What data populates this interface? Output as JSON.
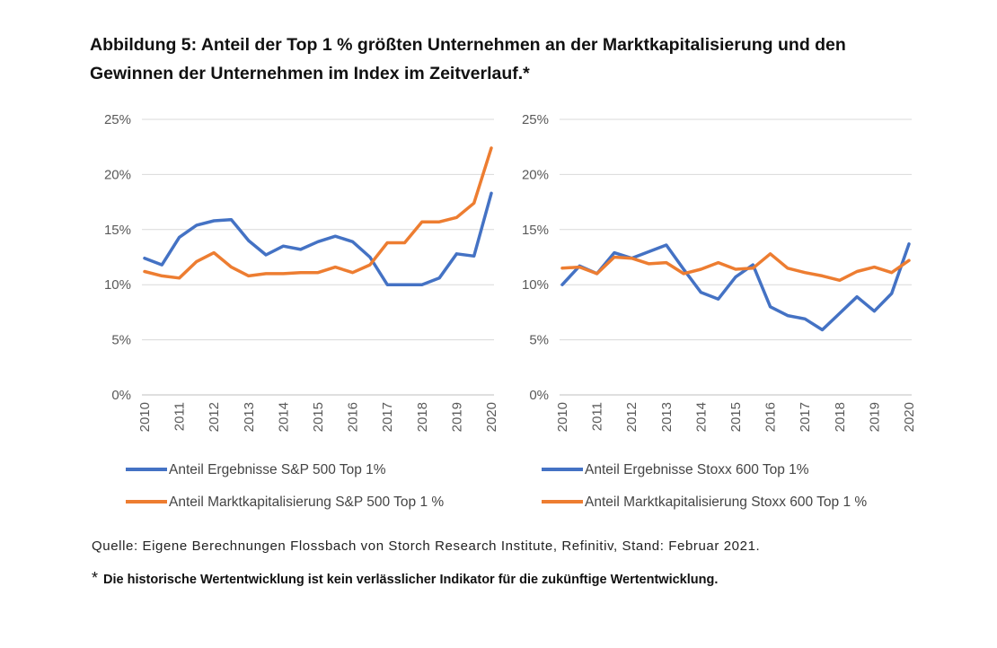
{
  "title_line1": "Abbildung 5: Anteil der Top 1 % größten Unternehmen an der Marktkapitalisierung und den",
  "title_line2": "Gewinnen der Unternehmen im Index im Zeitverlauf.*",
  "source": "Quelle: Eigene Berechnungen Flossbach von Storch Research Institute, Refinitiv, Stand: Februar 2021.",
  "disclaimer_star": "*",
  "disclaimer": "Die historische Wertentwicklung ist kein verlässlicher Indikator für die zukünftige Wertentwicklung.",
  "colors": {
    "blue": "#4472C4",
    "orange": "#ED7D31",
    "grid": "#D9D9D9",
    "axis": "#BFBFBF"
  },
  "chart_data": [
    {
      "type": "line",
      "y_ticks": [
        "0%",
        "5%",
        "10%",
        "15%",
        "20%",
        "25%"
      ],
      "ylim": [
        0,
        25
      ],
      "x_ticks": [
        "2010",
        "2011",
        "2012",
        "2013",
        "2014",
        "2015",
        "2016",
        "2017",
        "2018",
        "2019",
        "2020"
      ],
      "x_range": [
        2010,
        2020
      ],
      "series": [
        {
          "name": "Anteil Ergebnisse S&P 500 Top 1%",
          "color": "#4472C4",
          "x": [
            2010,
            2010.5,
            2011,
            2011.5,
            2012,
            2012.5,
            2013,
            2013.5,
            2014,
            2014.5,
            2015,
            2015.5,
            2016,
            2016.5,
            2017,
            2017.5,
            2018,
            2018.5,
            2019,
            2019.5,
            2020
          ],
          "values": [
            12.4,
            11.8,
            14.3,
            15.4,
            15.8,
            15.9,
            14.0,
            12.7,
            13.5,
            13.2,
            13.9,
            14.4,
            13.9,
            12.5,
            10.0,
            10.0,
            10.0,
            10.6,
            12.8,
            12.6,
            18.3
          ]
        },
        {
          "name": "Anteil Marktkapitalisierung S&P 500 Top 1 %",
          "color": "#ED7D31",
          "x": [
            2010,
            2010.5,
            2011,
            2011.5,
            2012,
            2012.5,
            2013,
            2013.5,
            2014,
            2014.5,
            2015,
            2015.5,
            2016,
            2016.5,
            2017,
            2017.5,
            2018,
            2018.5,
            2019,
            2019.5,
            2020
          ],
          "values": [
            11.2,
            10.8,
            10.6,
            12.1,
            12.9,
            11.6,
            10.8,
            11.0,
            11.0,
            11.1,
            11.1,
            11.6,
            11.1,
            11.8,
            13.8,
            13.8,
            15.7,
            15.7,
            16.1,
            17.4,
            22.4
          ]
        }
      ]
    },
    {
      "type": "line",
      "y_ticks": [
        "0%",
        "5%",
        "10%",
        "15%",
        "20%",
        "25%"
      ],
      "ylim": [
        0,
        25
      ],
      "x_ticks": [
        "2010",
        "2011",
        "2012",
        "2013",
        "2014",
        "2015",
        "2016",
        "2017",
        "2018",
        "2019",
        "2020"
      ],
      "x_range": [
        2010,
        2020
      ],
      "series": [
        {
          "name": "Anteil Ergebnisse Stoxx 600 Top 1%",
          "color": "#4472C4",
          "x": [
            2010,
            2010.5,
            2011,
            2011.5,
            2012,
            2012.5,
            2013,
            2013.5,
            2014,
            2014.5,
            2015,
            2015.5,
            2016,
            2016.5,
            2017,
            2017.5,
            2018,
            2018.5,
            2019,
            2019.5,
            2020
          ],
          "values": [
            10.0,
            11.7,
            11.0,
            12.9,
            12.4,
            13.0,
            13.6,
            11.4,
            9.3,
            8.7,
            10.7,
            11.8,
            8.0,
            7.2,
            6.9,
            5.9,
            7.4,
            8.9,
            7.6,
            9.2,
            13.7
          ]
        },
        {
          "name": "Anteil Marktkapitalisierung Stoxx 600 Top 1 %",
          "color": "#ED7D31",
          "x": [
            2010,
            2010.5,
            2011,
            2011.5,
            2012,
            2012.5,
            2013,
            2013.5,
            2014,
            2014.5,
            2015,
            2015.5,
            2016,
            2016.5,
            2017,
            2017.5,
            2018,
            2018.5,
            2019,
            2019.5,
            2020
          ],
          "values": [
            11.5,
            11.6,
            11.0,
            12.5,
            12.4,
            11.9,
            12.0,
            11.0,
            11.4,
            12.0,
            11.4,
            11.5,
            12.8,
            11.5,
            11.1,
            10.8,
            10.4,
            11.2,
            11.6,
            11.1,
            12.2
          ]
        }
      ]
    }
  ]
}
